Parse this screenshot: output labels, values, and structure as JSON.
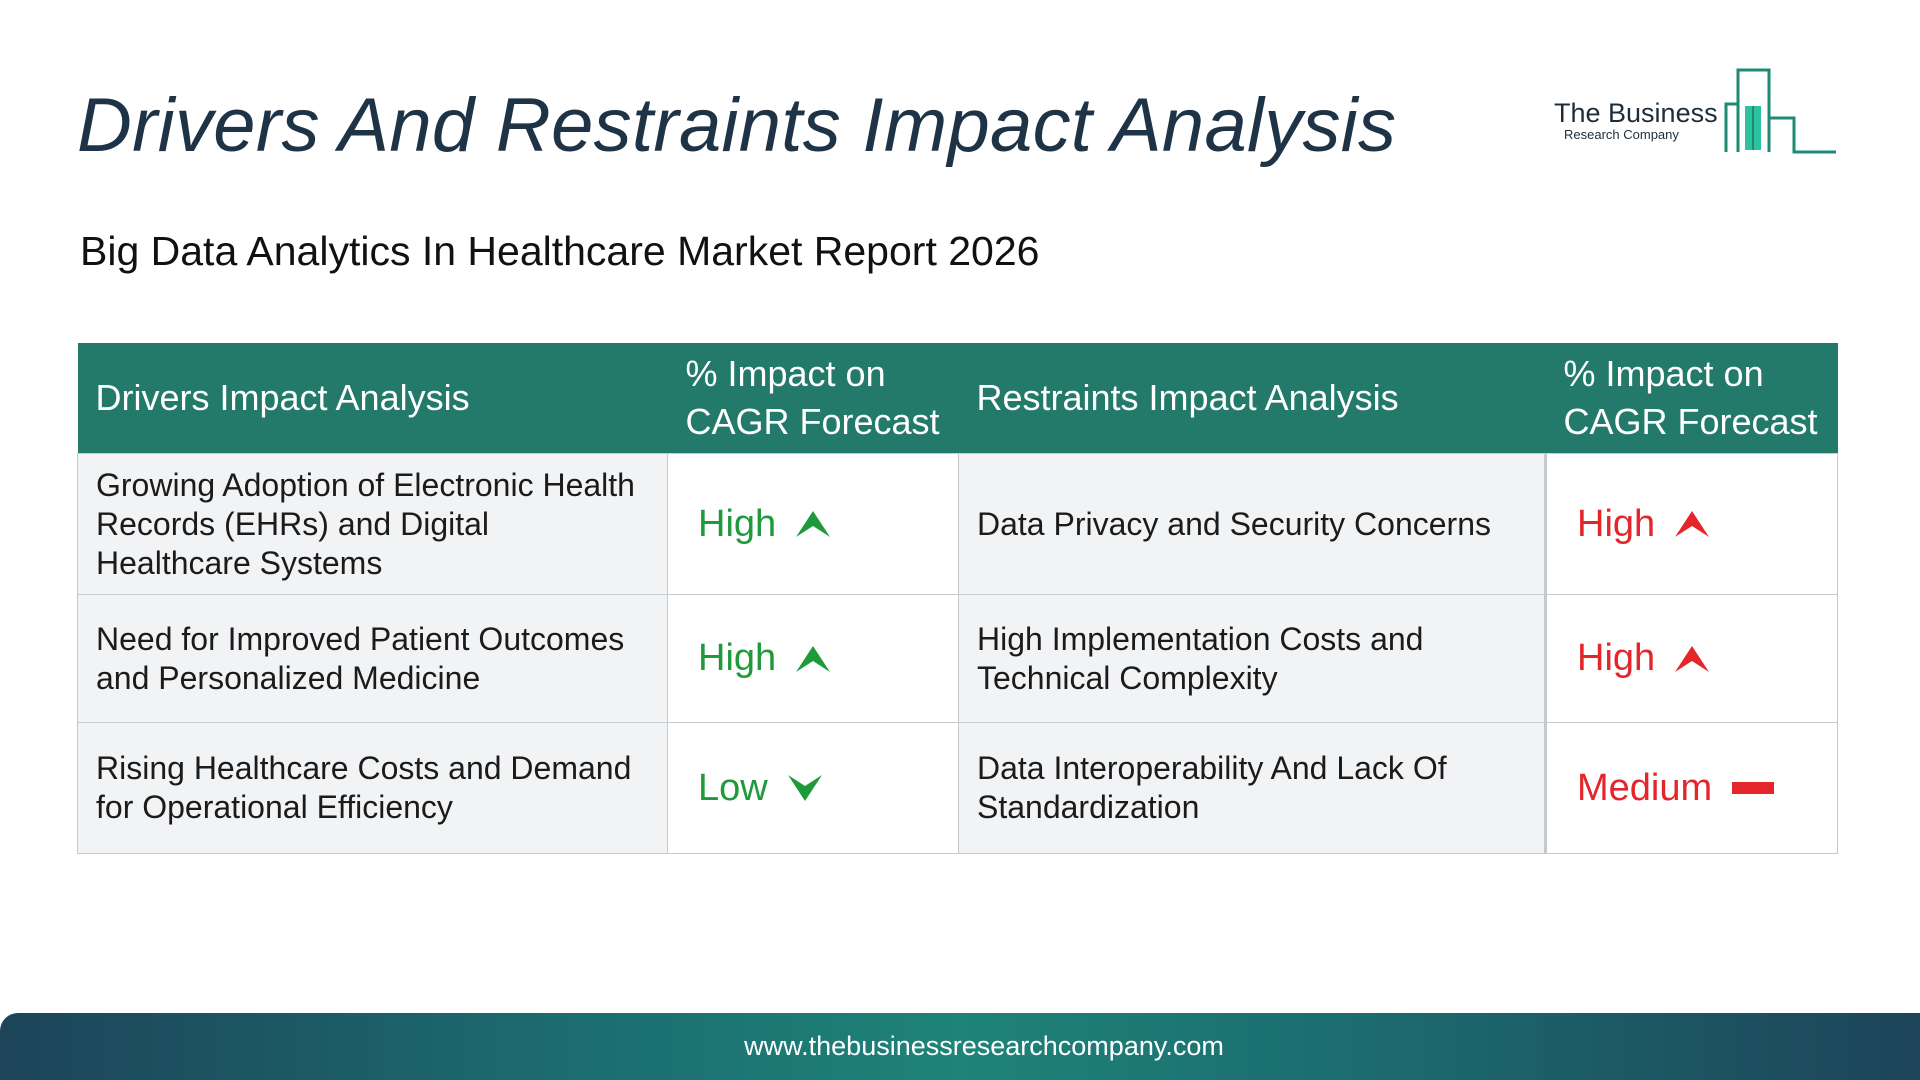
{
  "header": {
    "title": "Drivers And Restraints Impact Analysis",
    "subtitle": "Big Data Analytics In Healthcare Market Report 2026"
  },
  "logo": {
    "line1": "The Business",
    "line2": "Research Company",
    "icon": "bar-chart-logo-icon",
    "color": "#1f8a73"
  },
  "table": {
    "headers": {
      "drivers": "Drivers Impact Analysis",
      "drivers_impact": "% Impact on CAGR Forecast",
      "restraints": "Restraints Impact Analysis",
      "restraints_impact": "% Impact on CAGR Forecast"
    },
    "rows": [
      {
        "driver": "Growing Adoption of Electronic Health Records (EHRs) and Digital Healthcare Systems",
        "driver_impact": "High",
        "driver_trend": "up",
        "restraint": "Data Privacy and Security Concerns",
        "restraint_impact": "High",
        "restraint_trend": "up"
      },
      {
        "driver": "Need for Improved Patient Outcomes and Personalized Medicine",
        "driver_impact": "High",
        "driver_trend": "up",
        "restraint": "High Implementation Costs and Technical Complexity",
        "restraint_impact": "High",
        "restraint_trend": "up"
      },
      {
        "driver": "Rising Healthcare Costs and Demand for Operational Efficiency",
        "driver_impact": "Low",
        "driver_trend": "down",
        "restraint": "Data Interoperability And Lack Of Standardization",
        "restraint_impact": "Medium",
        "restraint_trend": "flat"
      }
    ],
    "colors": {
      "header_bg": "#237a6a",
      "driver_impact": "#1f9a3a",
      "restraint_impact": "#e4262b"
    },
    "icons": {
      "up": "arrow-up-icon",
      "down": "arrow-down-icon",
      "flat": "dash-icon"
    }
  },
  "footer": {
    "url": "www.thebusinessresearchcompany.com"
  }
}
